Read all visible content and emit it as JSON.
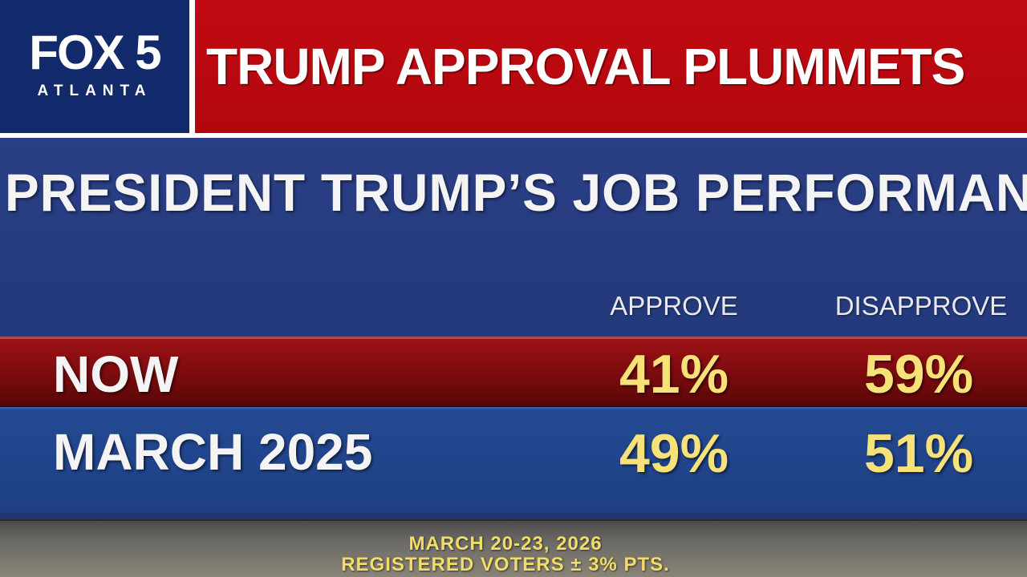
{
  "banner": {
    "logo_main": "FOX 5",
    "logo_sub": "ATLANTA",
    "headline": "TRUMP APPROVAL PLUMMETS"
  },
  "graphic": {
    "title": "PRESIDENT TRUMP’S JOB PERFORMANCE",
    "columns": [
      "APPROVE",
      "DISAPPROVE"
    ],
    "rows": [
      {
        "label": "NOW",
        "approve": "41%",
        "disapprove": "59%"
      },
      {
        "label": "MARCH 2025",
        "approve": "49%",
        "disapprove": "51%"
      }
    ],
    "footer": {
      "dates": "MARCH 20-23, 2026",
      "sample": "REGISTERED VOTERS ± 3% PTS."
    }
  },
  "colors": {
    "logo_bg": "#122a6b",
    "headline_bg": "#c20a12",
    "panel_bg": "#23397b",
    "now_row": "#7a0b0e",
    "march_row": "#1e3f84",
    "percent_text": "#f7e27a"
  }
}
